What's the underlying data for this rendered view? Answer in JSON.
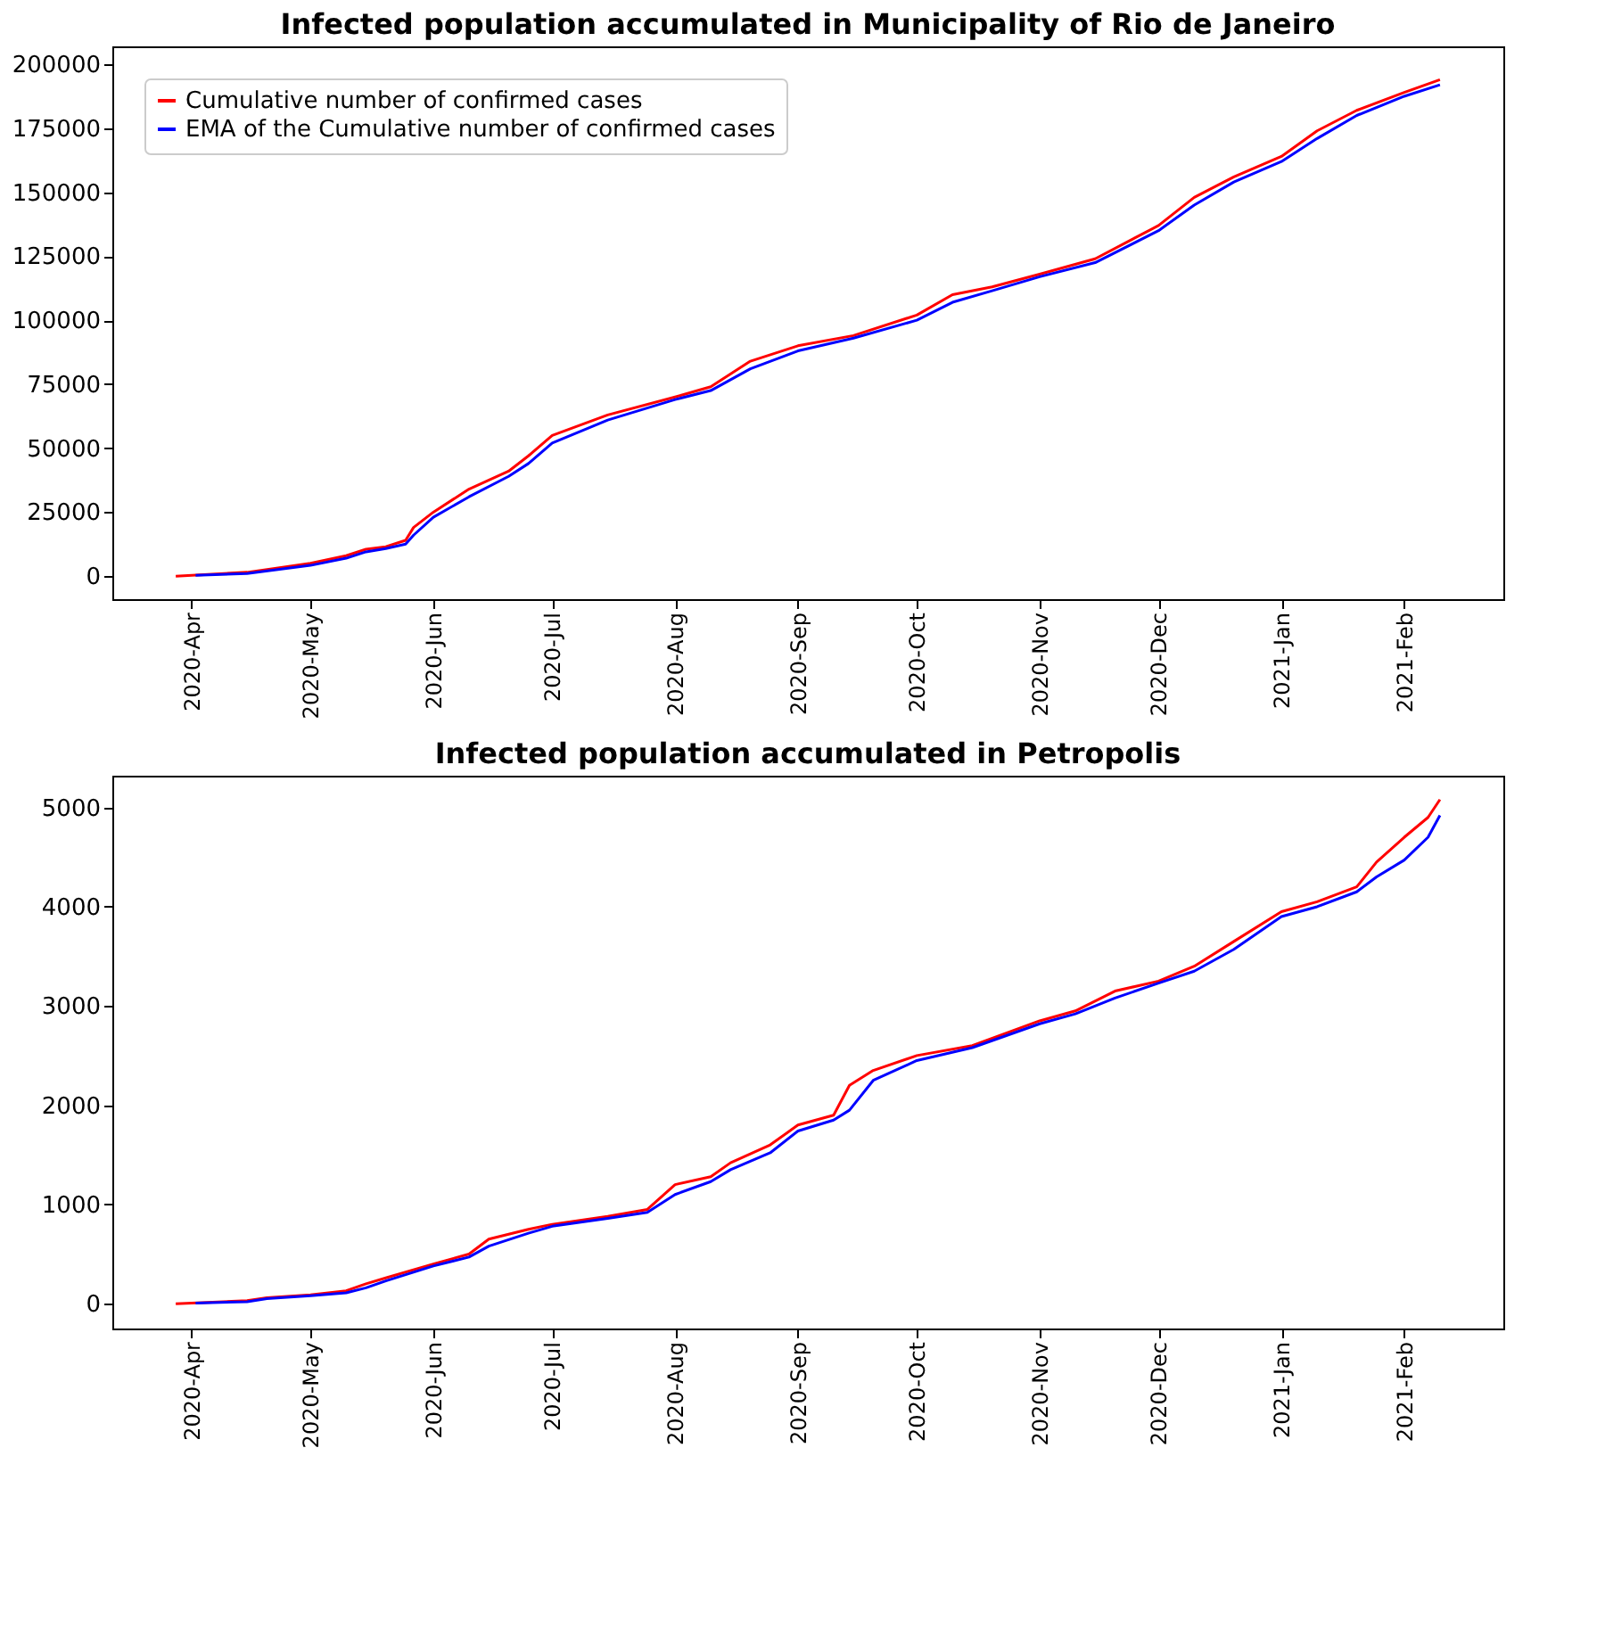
{
  "chart_data": [
    {
      "type": "line",
      "title": "Infected population accumulated in Municipality of Rio de Janeiro",
      "legend": "top left",
      "grid": false,
      "line_style": "solid",
      "marker": "none",
      "xlim": [
        "2020-03-12",
        "2021-02-26"
      ],
      "ylim": [
        -9000,
        207000
      ],
      "xticks": [
        {
          "value": "2020-04-01",
          "label": "2020-Apr"
        },
        {
          "value": "2020-05-01",
          "label": "2020-May"
        },
        {
          "value": "2020-06-01",
          "label": "2020-Jun"
        },
        {
          "value": "2020-07-01",
          "label": "2020-Jul"
        },
        {
          "value": "2020-08-01",
          "label": "2020-Aug"
        },
        {
          "value": "2020-09-01",
          "label": "2020-Sep"
        },
        {
          "value": "2020-10-01",
          "label": "2020-Oct"
        },
        {
          "value": "2020-11-01",
          "label": "2020-Nov"
        },
        {
          "value": "2020-12-01",
          "label": "2020-Dec"
        },
        {
          "value": "2021-01-01",
          "label": "2021-Jan"
        },
        {
          "value": "2021-02-01",
          "label": "2021-Feb"
        }
      ],
      "yticks": [
        0,
        25000,
        50000,
        75000,
        100000,
        125000,
        150000,
        175000,
        200000
      ],
      "series": [
        {
          "name": "Cumulative number of confirmed cases",
          "color": "#ff0000",
          "x": [
            "2020-03-28",
            "2020-04-15",
            "2020-05-01",
            "2020-05-10",
            "2020-05-15",
            "2020-05-20",
            "2020-05-25",
            "2020-05-27",
            "2020-06-01",
            "2020-06-10",
            "2020-06-20",
            "2020-06-25",
            "2020-07-01",
            "2020-07-15",
            "2020-08-01",
            "2020-08-10",
            "2020-08-20",
            "2020-09-01",
            "2020-09-15",
            "2020-10-01",
            "2020-10-10",
            "2020-10-20",
            "2020-11-01",
            "2020-11-15",
            "2020-12-01",
            "2020-12-10",
            "2020-12-20",
            "2021-01-01",
            "2021-01-10",
            "2021-01-20",
            "2021-02-01",
            "2021-02-10"
          ],
          "values": [
            0,
            1500,
            5000,
            8000,
            10500,
            11500,
            14000,
            19000,
            25000,
            34000,
            41000,
            47000,
            55000,
            63000,
            70000,
            74000,
            84000,
            90000,
            94000,
            102000,
            110000,
            113000,
            118000,
            124000,
            137000,
            148000,
            156000,
            164000,
            174000,
            182000,
            189000,
            194000
          ]
        },
        {
          "name": "EMA of the Cumulative number of confirmed cases",
          "color": "#0000ff",
          "x": [
            "2020-04-02",
            "2020-04-15",
            "2020-05-01",
            "2020-05-10",
            "2020-05-15",
            "2020-05-20",
            "2020-05-25",
            "2020-05-27",
            "2020-06-01",
            "2020-06-10",
            "2020-06-20",
            "2020-06-25",
            "2020-07-01",
            "2020-07-15",
            "2020-08-01",
            "2020-08-10",
            "2020-08-20",
            "2020-09-01",
            "2020-09-15",
            "2020-10-01",
            "2020-10-10",
            "2020-10-20",
            "2020-11-01",
            "2020-11-15",
            "2020-12-01",
            "2020-12-10",
            "2020-12-20",
            "2021-01-01",
            "2021-01-10",
            "2021-01-20",
            "2021-02-01",
            "2021-02-10"
          ],
          "values": [
            300,
            1000,
            4200,
            7000,
            9500,
            10800,
            12500,
            16000,
            23000,
            31000,
            39000,
            44000,
            52000,
            61000,
            69000,
            72500,
            81000,
            88000,
            93000,
            100000,
            107000,
            111500,
            117000,
            122500,
            135000,
            145000,
            154000,
            162000,
            171000,
            180000,
            187500,
            192000
          ]
        }
      ]
    },
    {
      "type": "line",
      "title": "Infected population accumulated in Petropolis",
      "legend": "top left",
      "grid": false,
      "line_style": "solid",
      "marker": "none",
      "xlim": [
        "2020-03-12",
        "2021-02-26"
      ],
      "ylim": [
        -250,
        5320
      ],
      "xticks": [
        {
          "value": "2020-04-01",
          "label": "2020-Apr"
        },
        {
          "value": "2020-05-01",
          "label": "2020-May"
        },
        {
          "value": "2020-06-01",
          "label": "2020-Jun"
        },
        {
          "value": "2020-07-01",
          "label": "2020-Jul"
        },
        {
          "value": "2020-08-01",
          "label": "2020-Aug"
        },
        {
          "value": "2020-09-01",
          "label": "2020-Sep"
        },
        {
          "value": "2020-10-01",
          "label": "2020-Oct"
        },
        {
          "value": "2020-11-01",
          "label": "2020-Nov"
        },
        {
          "value": "2020-12-01",
          "label": "2020-Dec"
        },
        {
          "value": "2021-01-01",
          "label": "2021-Jan"
        },
        {
          "value": "2021-02-01",
          "label": "2021-Feb"
        }
      ],
      "yticks": [
        0,
        1000,
        2000,
        3000,
        4000,
        5000
      ],
      "series": [
        {
          "name": "Cumulative number of confirmed cases",
          "color": "#ff0000",
          "x": [
            "2020-03-28",
            "2020-04-15",
            "2020-04-20",
            "2020-05-01",
            "2020-05-10",
            "2020-05-15",
            "2020-05-20",
            "2020-06-01",
            "2020-06-10",
            "2020-06-15",
            "2020-06-25",
            "2020-07-01",
            "2020-07-15",
            "2020-07-25",
            "2020-08-01",
            "2020-08-10",
            "2020-08-15",
            "2020-08-25",
            "2020-09-01",
            "2020-09-10",
            "2020-09-14",
            "2020-09-20",
            "2020-10-01",
            "2020-10-15",
            "2020-11-01",
            "2020-11-10",
            "2020-11-20",
            "2020-12-01",
            "2020-12-10",
            "2020-12-20",
            "2021-01-01",
            "2021-01-10",
            "2021-01-20",
            "2021-01-25",
            "2021-02-01",
            "2021-02-07",
            "2021-02-10"
          ],
          "values": [
            0,
            30,
            60,
            90,
            130,
            200,
            260,
            400,
            500,
            650,
            750,
            800,
            880,
            950,
            1200,
            1280,
            1420,
            1600,
            1800,
            1900,
            2200,
            2350,
            2500,
            2600,
            2850,
            2950,
            3150,
            3250,
            3400,
            3650,
            3950,
            4050,
            4200,
            4450,
            4700,
            4900,
            5080
          ]
        },
        {
          "name": "EMA of the Cumulative number of confirmed cases",
          "color": "#0000ff",
          "x": [
            "2020-04-02",
            "2020-04-15",
            "2020-04-20",
            "2020-05-01",
            "2020-05-10",
            "2020-05-15",
            "2020-05-20",
            "2020-06-01",
            "2020-06-10",
            "2020-06-15",
            "2020-06-25",
            "2020-07-01",
            "2020-07-15",
            "2020-07-25",
            "2020-08-01",
            "2020-08-10",
            "2020-08-15",
            "2020-08-25",
            "2020-09-01",
            "2020-09-10",
            "2020-09-14",
            "2020-09-20",
            "2020-10-01",
            "2020-10-15",
            "2020-11-01",
            "2020-11-10",
            "2020-11-20",
            "2020-12-01",
            "2020-12-10",
            "2020-12-20",
            "2021-01-01",
            "2021-01-10",
            "2021-01-20",
            "2021-01-25",
            "2021-02-01",
            "2021-02-07",
            "2021-02-10"
          ],
          "values": [
            5,
            20,
            50,
            80,
            110,
            160,
            230,
            380,
            470,
            580,
            710,
            780,
            860,
            920,
            1100,
            1230,
            1350,
            1520,
            1740,
            1850,
            1950,
            2250,
            2450,
            2580,
            2820,
            2920,
            3080,
            3230,
            3350,
            3570,
            3900,
            4000,
            4150,
            4300,
            4470,
            4700,
            4920
          ]
        }
      ]
    }
  ]
}
